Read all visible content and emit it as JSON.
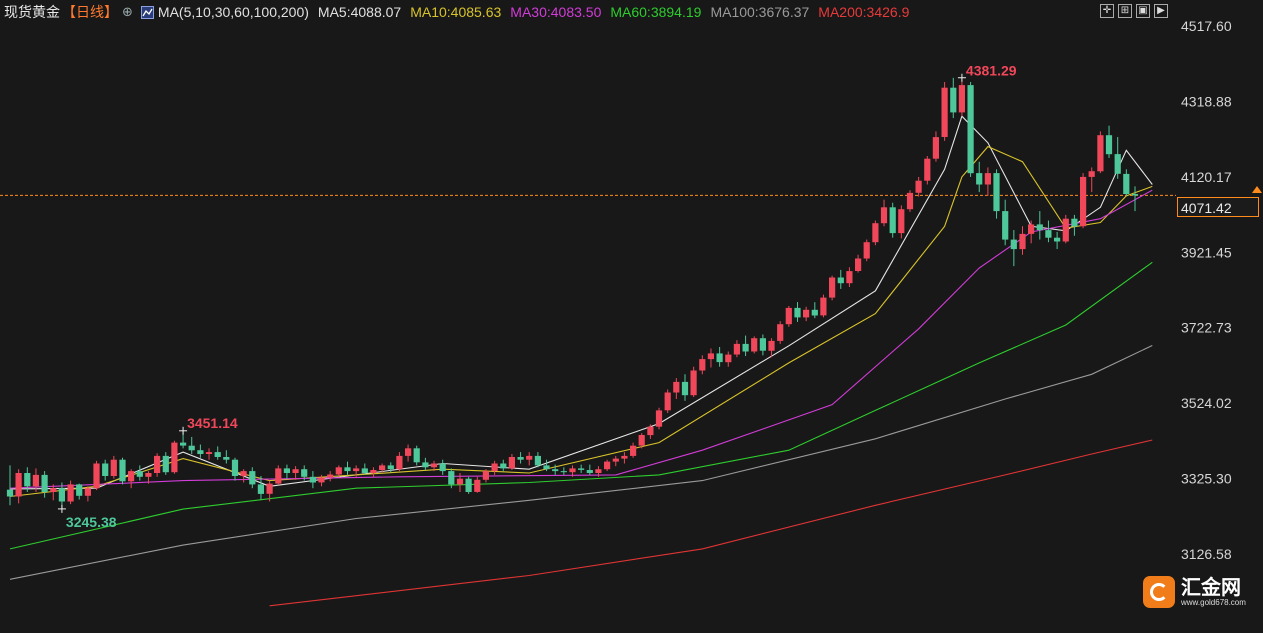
{
  "header": {
    "title": "现货黄金",
    "period": "【日线】",
    "add_icon": "plus-circle-icon",
    "indicator_icon": "indicator-icon",
    "ma_label": "MA(5,10,30,60,100,200)",
    "ma": [
      {
        "label": "MA5:4088.07",
        "color": "#e0e0e0"
      },
      {
        "label": "MA10:4085.63",
        "color": "#d8c32a"
      },
      {
        "label": "MA30:4083.50",
        "color": "#d23cd8"
      },
      {
        "label": "MA60:3894.19",
        "color": "#2ecc2e"
      },
      {
        "label": "MA100:3676.37",
        "color": "#9a9a9a"
      },
      {
        "label": "MA200:3426.9",
        "color": "#e83a3a"
      }
    ],
    "tools": [
      "crosshair-icon",
      "layout-icon",
      "fullscreen-icon",
      "play-icon"
    ]
  },
  "y_axis": {
    "labels": [
      "4517.60",
      "4318.88",
      "4120.17",
      "3921.45",
      "3722.73",
      "3524.02",
      "3325.30",
      "3126.58"
    ]
  },
  "current_price": "4071.42",
  "annotations": {
    "high": "4381.29",
    "mid_high": "3451.14",
    "low": "3245.38"
  },
  "brand": {
    "name": "汇金网",
    "url": "www.gold678.com"
  },
  "colors": {
    "up": "#f0475a",
    "down": "#4ec79a",
    "background": "#181818",
    "price_line": "#ff8c1a"
  },
  "chart_data": {
    "type": "candlestick",
    "ylim": [
      3050,
      4580
    ],
    "y_ticks": [
      4517.6,
      4318.88,
      4120.17,
      3921.45,
      3722.73,
      3524.02,
      3325.3,
      3126.58
    ],
    "ohlc": [
      [
        3296,
        3360,
        3255,
        3278
      ],
      [
        3278,
        3350,
        3260,
        3340
      ],
      [
        3340,
        3355,
        3290,
        3305
      ],
      [
        3305,
        3352,
        3290,
        3335
      ],
      [
        3335,
        3345,
        3275,
        3290
      ],
      [
        3290,
        3310,
        3268,
        3300
      ],
      [
        3300,
        3315,
        3245,
        3265
      ],
      [
        3265,
        3320,
        3258,
        3310
      ],
      [
        3310,
        3312,
        3270,
        3280
      ],
      [
        3280,
        3305,
        3265,
        3300
      ],
      [
        3300,
        3372,
        3295,
        3365
      ],
      [
        3365,
        3375,
        3320,
        3332
      ],
      [
        3332,
        3385,
        3325,
        3375
      ],
      [
        3375,
        3380,
        3310,
        3318
      ],
      [
        3318,
        3350,
        3300,
        3345
      ],
      [
        3345,
        3360,
        3320,
        3330
      ],
      [
        3330,
        3345,
        3312,
        3340
      ],
      [
        3340,
        3392,
        3330,
        3385
      ],
      [
        3385,
        3395,
        3335,
        3342
      ],
      [
        3342,
        3425,
        3338,
        3420
      ],
      [
        3420,
        3451,
        3405,
        3412
      ],
      [
        3412,
        3435,
        3390,
        3400
      ],
      [
        3400,
        3415,
        3380,
        3390
      ],
      [
        3390,
        3405,
        3375,
        3395
      ],
      [
        3395,
        3410,
        3375,
        3382
      ],
      [
        3382,
        3400,
        3365,
        3375
      ],
      [
        3375,
        3380,
        3320,
        3332
      ],
      [
        3332,
        3350,
        3315,
        3345
      ],
      [
        3345,
        3355,
        3300,
        3310
      ],
      [
        3310,
        3332,
        3270,
        3285
      ],
      [
        3285,
        3320,
        3265,
        3312
      ],
      [
        3312,
        3360,
        3308,
        3352
      ],
      [
        3352,
        3362,
        3325,
        3340
      ],
      [
        3340,
        3358,
        3322,
        3350
      ],
      [
        3350,
        3360,
        3320,
        3330
      ],
      [
        3330,
        3345,
        3300,
        3315
      ],
      [
        3315,
        3335,
        3305,
        3328
      ],
      [
        3328,
        3345,
        3318,
        3336
      ],
      [
        3336,
        3360,
        3330,
        3355
      ],
      [
        3355,
        3370,
        3335,
        3345
      ],
      [
        3345,
        3360,
        3330,
        3352
      ],
      [
        3352,
        3365,
        3335,
        3340
      ],
      [
        3340,
        3355,
        3330,
        3348
      ],
      [
        3348,
        3365,
        3340,
        3360
      ],
      [
        3360,
        3368,
        3342,
        3350
      ],
      [
        3350,
        3395,
        3345,
        3385
      ],
      [
        3385,
        3415,
        3370,
        3405
      ],
      [
        3405,
        3412,
        3360,
        3368
      ],
      [
        3368,
        3380,
        3348,
        3355
      ],
      [
        3355,
        3372,
        3345,
        3365
      ],
      [
        3365,
        3375,
        3335,
        3345
      ],
      [
        3345,
        3352,
        3300,
        3310
      ],
      [
        3310,
        3340,
        3290,
        3325
      ],
      [
        3325,
        3330,
        3285,
        3290
      ],
      [
        3290,
        3330,
        3288,
        3322
      ],
      [
        3322,
        3350,
        3315,
        3345
      ],
      [
        3345,
        3372,
        3335,
        3365
      ],
      [
        3365,
        3375,
        3345,
        3352
      ],
      [
        3352,
        3390,
        3348,
        3382
      ],
      [
        3382,
        3395,
        3365,
        3375
      ],
      [
        3375,
        3395,
        3360,
        3385
      ],
      [
        3385,
        3395,
        3355,
        3360
      ],
      [
        3360,
        3375,
        3345,
        3350
      ],
      [
        3350,
        3362,
        3335,
        3345
      ],
      [
        3345,
        3355,
        3335,
        3342
      ],
      [
        3342,
        3360,
        3330,
        3352
      ],
      [
        3352,
        3362,
        3340,
        3348
      ],
      [
        3348,
        3362,
        3335,
        3340
      ],
      [
        3340,
        3358,
        3330,
        3350
      ],
      [
        3350,
        3375,
        3345,
        3370
      ],
      [
        3370,
        3385,
        3358,
        3378
      ],
      [
        3378,
        3395,
        3365,
        3385
      ],
      [
        3385,
        3420,
        3380,
        3412
      ],
      [
        3412,
        3445,
        3405,
        3440
      ],
      [
        3440,
        3468,
        3430,
        3462
      ],
      [
        3462,
        3512,
        3455,
        3505
      ],
      [
        3505,
        3560,
        3498,
        3552
      ],
      [
        3552,
        3590,
        3535,
        3580
      ],
      [
        3580,
        3600,
        3530,
        3545
      ],
      [
        3545,
        3620,
        3540,
        3610
      ],
      [
        3610,
        3650,
        3600,
        3640
      ],
      [
        3640,
        3668,
        3618,
        3655
      ],
      [
        3655,
        3672,
        3620,
        3632
      ],
      [
        3632,
        3660,
        3620,
        3652
      ],
      [
        3652,
        3690,
        3645,
        3680
      ],
      [
        3680,
        3702,
        3648,
        3660
      ],
      [
        3660,
        3700,
        3655,
        3695
      ],
      [
        3695,
        3705,
        3650,
        3662
      ],
      [
        3662,
        3695,
        3645,
        3688
      ],
      [
        3688,
        3740,
        3680,
        3732
      ],
      [
        3732,
        3780,
        3725,
        3775
      ],
      [
        3775,
        3790,
        3738,
        3750
      ],
      [
        3750,
        3778,
        3740,
        3770
      ],
      [
        3770,
        3790,
        3748,
        3755
      ],
      [
        3755,
        3810,
        3750,
        3802
      ],
      [
        3802,
        3860,
        3795,
        3855
      ],
      [
        3855,
        3875,
        3825,
        3840
      ],
      [
        3840,
        3882,
        3830,
        3872
      ],
      [
        3872,
        3915,
        3868,
        3905
      ],
      [
        3905,
        3955,
        3898,
        3948
      ],
      [
        3948,
        4005,
        3940,
        3998
      ],
      [
        3998,
        4060,
        3990,
        4040
      ],
      [
        4040,
        4052,
        3960,
        3972
      ],
      [
        3972,
        4045,
        3958,
        4035
      ],
      [
        4035,
        4085,
        4028,
        4078
      ],
      [
        4078,
        4120,
        4068,
        4110
      ],
      [
        4110,
        4175,
        4100,
        4168
      ],
      [
        4168,
        4240,
        4160,
        4225
      ],
      [
        4225,
        4370,
        4215,
        4355
      ],
      [
        4355,
        4381,
        4275,
        4290
      ],
      [
        4290,
        4375,
        4280,
        4362
      ],
      [
        4362,
        4370,
        4120,
        4130
      ],
      [
        4130,
        4160,
        4080,
        4100
      ],
      [
        4100,
        4145,
        4070,
        4130
      ],
      [
        4130,
        4140,
        4010,
        4030
      ],
      [
        4030,
        4060,
        3940,
        3955
      ],
      [
        3955,
        3980,
        3885,
        3930
      ],
      [
        3930,
        3990,
        3915,
        3970
      ],
      [
        3970,
        4005,
        3945,
        3995
      ],
      [
        3995,
        4030,
        3955,
        3980
      ],
      [
        3980,
        4005,
        3948,
        3960
      ],
      [
        3960,
        3975,
        3930,
        3950
      ],
      [
        3950,
        4020,
        3945,
        4010
      ],
      [
        4010,
        4020,
        3965,
        3990
      ],
      [
        3990,
        4130,
        3985,
        4120
      ],
      [
        4120,
        4145,
        4080,
        4135
      ],
      [
        4135,
        4240,
        4130,
        4230
      ],
      [
        4230,
        4255,
        4170,
        4180
      ],
      [
        4180,
        4225,
        4115,
        4128
      ],
      [
        4128,
        4140,
        4070,
        4075
      ],
      [
        4075,
        4095,
        4030,
        4071
      ]
    ],
    "ma_lines": {
      "MA5": [
        [
          0,
          3298
        ],
        [
          10,
          3300
        ],
        [
          20,
          3395
        ],
        [
          30,
          3305
        ],
        [
          50,
          3365
        ],
        [
          60,
          3350
        ],
        [
          75,
          3470
        ],
        [
          90,
          3675
        ],
        [
          100,
          3820
        ],
        [
          108,
          4140
        ],
        [
          110,
          4280
        ],
        [
          113,
          4210
        ],
        [
          118,
          3990
        ],
        [
          122,
          3978
        ],
        [
          126,
          4040
        ],
        [
          129,
          4190
        ],
        [
          132,
          4100
        ]
      ],
      "MA10": [
        [
          0,
          3278
        ],
        [
          10,
          3305
        ],
        [
          20,
          3378
        ],
        [
          30,
          3320
        ],
        [
          50,
          3350
        ],
        [
          60,
          3340
        ],
        [
          75,
          3420
        ],
        [
          90,
          3630
        ],
        [
          100,
          3760
        ],
        [
          108,
          3990
        ],
        [
          110,
          4120
        ],
        [
          113,
          4200
        ],
        [
          117,
          4160
        ],
        [
          122,
          3985
        ],
        [
          126,
          4000
        ],
        [
          129,
          4070
        ],
        [
          132,
          4095
        ]
      ],
      "MA30": [
        [
          0,
          3300
        ],
        [
          20,
          3320
        ],
        [
          45,
          3330
        ],
        [
          70,
          3335
        ],
        [
          80,
          3400
        ],
        [
          95,
          3520
        ],
        [
          105,
          3720
        ],
        [
          112,
          3880
        ],
        [
          118,
          3975
        ],
        [
          126,
          4010
        ],
        [
          132,
          4085
        ]
      ],
      "MA60": [
        [
          0,
          3140
        ],
        [
          20,
          3245
        ],
        [
          40,
          3300
        ],
        [
          60,
          3315
        ],
        [
          75,
          3335
        ],
        [
          90,
          3400
        ],
        [
          100,
          3505
        ],
        [
          112,
          3630
        ],
        [
          122,
          3730
        ],
        [
          132,
          3895
        ]
      ],
      "MA100": [
        [
          0,
          3060
        ],
        [
          20,
          3150
        ],
        [
          40,
          3220
        ],
        [
          60,
          3268
        ],
        [
          80,
          3320
        ],
        [
          100,
          3430
        ],
        [
          115,
          3535
        ],
        [
          125,
          3600
        ],
        [
          132,
          3676
        ]
      ],
      "MA200": [
        [
          30,
          2990
        ],
        [
          60,
          3070
        ],
        [
          80,
          3140
        ],
        [
          100,
          3255
        ],
        [
          115,
          3335
        ],
        [
          125,
          3390
        ],
        [
          132,
          3427
        ]
      ]
    }
  }
}
